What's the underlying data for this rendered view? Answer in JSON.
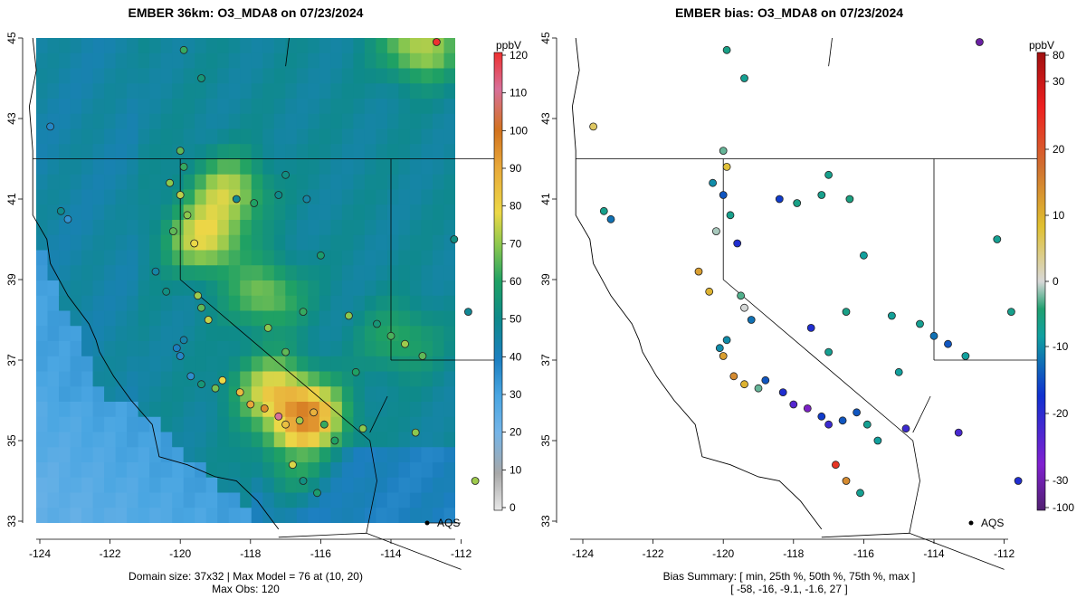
{
  "left_panel": {
    "title": "EMBER 36km: O3_MDA8 on 07/23/2024",
    "caption_line1": "Domain size: 37x32 | Max Model = 76 at (10, 20)",
    "caption_line2": "Max Obs: 120",
    "colorbar": {
      "unit": "ppbV",
      "tick_labels": [
        "0",
        "10",
        "20",
        "30",
        "40",
        "50",
        "60",
        "70",
        "80",
        "90",
        "100",
        "110",
        "120"
      ],
      "colors": [
        "#e8e8e8",
        "#a8a8a8",
        "#75b5e8",
        "#4aa6e2",
        "#1c7fc0",
        "#0e8a8a",
        "#1fa164",
        "#8cc84e",
        "#ecd847",
        "#e8a83a",
        "#d2721e",
        "#d8709a",
        "#ee3030"
      ]
    },
    "site_label": "AQS"
  },
  "right_panel": {
    "title": "EMBER bias: O3_MDA8 on 07/23/2024",
    "caption_line1": "Bias Summary: [ min, 25th %, 50th %, 75th %, max ]",
    "caption_line2": "[ -58,   -16,   -9.1,   -1.6,   27 ]",
    "colorbar": {
      "unit": "ppbV",
      "tick_labels": [
        "80",
        "30",
        "20",
        "10",
        "0",
        "-10",
        "-20",
        "-30",
        "-100"
      ],
      "colors": [
        "#a01010",
        "#ee2020",
        "#d07030",
        "#e0b830",
        "#d8d8d8",
        "#20a070",
        "#1030d0",
        "#8020d0",
        "#502070"
      ]
    },
    "site_label": "AQS"
  },
  "axes": {
    "x_ticks": [
      "-124",
      "-122",
      "-120",
      "-118",
      "-116",
      "-114",
      "-112"
    ],
    "y_ticks": [
      "33",
      "35",
      "37",
      "39",
      "41",
      "43",
      "45"
    ]
  },
  "sites": [
    {
      "lon": -123.4,
      "lat": 40.7,
      "obs": 50,
      "bias": -9
    },
    {
      "lon": -123.2,
      "lat": 40.5,
      "obs": 35,
      "bias": -16
    },
    {
      "lon": -123.7,
      "lat": 42.8,
      "obs": 38,
      "bias": 10
    },
    {
      "lon": -119.9,
      "lat": 44.7,
      "obs": 62,
      "bias": -8
    },
    {
      "lon": -119.4,
      "lat": 44.0,
      "obs": 55,
      "bias": -10
    },
    {
      "lon": -120.0,
      "lat": 42.2,
      "obs": 66,
      "bias": -1
    },
    {
      "lon": -119.9,
      "lat": 41.8,
      "obs": 62,
      "bias": 12
    },
    {
      "lon": -120.3,
      "lat": 41.4,
      "obs": 70,
      "bias": -14
    },
    {
      "lon": -120.0,
      "lat": 41.1,
      "obs": 75,
      "bias": -18
    },
    {
      "lon": -119.8,
      "lat": 40.6,
      "obs": 70,
      "bias": -9
    },
    {
      "lon": -120.2,
      "lat": 40.2,
      "obs": 66,
      "bias": 2
    },
    {
      "lon": -119.6,
      "lat": 39.9,
      "obs": 80,
      "bias": -22
    },
    {
      "lon": -120.7,
      "lat": 39.2,
      "obs": 45,
      "bias": 16
    },
    {
      "lon": -120.4,
      "lat": 38.7,
      "obs": 52,
      "bias": 14
    },
    {
      "lon": -119.5,
      "lat": 38.6,
      "obs": 72,
      "bias": -2
    },
    {
      "lon": -119.4,
      "lat": 38.3,
      "obs": 66,
      "bias": 4
    },
    {
      "lon": -119.2,
      "lat": 38.0,
      "obs": 76,
      "bias": -16
    },
    {
      "lon": -119.9,
      "lat": 37.5,
      "obs": 44,
      "bias": -14
    },
    {
      "lon": -120.1,
      "lat": 37.3,
      "obs": 40,
      "bias": -14
    },
    {
      "lon": -120.0,
      "lat": 37.1,
      "obs": 38,
      "bias": 16
    },
    {
      "lon": -119.7,
      "lat": 36.6,
      "obs": 36,
      "bias": 18
    },
    {
      "lon": -119.4,
      "lat": 36.4,
      "obs": 55,
      "bias": 14
    },
    {
      "lon": -119.0,
      "lat": 36.3,
      "obs": 68,
      "bias": -1
    },
    {
      "lon": -118.8,
      "lat": 36.5,
      "obs": 80,
      "bias": -18
    },
    {
      "lon": -118.3,
      "lat": 36.2,
      "obs": 86,
      "bias": -22
    },
    {
      "lon": -118.0,
      "lat": 35.9,
      "obs": 90,
      "bias": -26
    },
    {
      "lon": -117.6,
      "lat": 35.8,
      "obs": 95,
      "bias": -30
    },
    {
      "lon": -117.2,
      "lat": 35.6,
      "obs": 110,
      "bias": -20
    },
    {
      "lon": -117.0,
      "lat": 35.4,
      "obs": 85,
      "bias": -24
    },
    {
      "lon": -116.6,
      "lat": 35.5,
      "obs": 72,
      "bias": -18
    },
    {
      "lon": -116.2,
      "lat": 35.7,
      "obs": 88,
      "bias": -18
    },
    {
      "lon": -115.9,
      "lat": 35.4,
      "obs": 62,
      "bias": -10
    },
    {
      "lon": -115.6,
      "lat": 35.0,
      "obs": 60,
      "bias": -12
    },
    {
      "lon": -116.8,
      "lat": 34.4,
      "obs": 78,
      "bias": 27
    },
    {
      "lon": -116.5,
      "lat": 34.0,
      "obs": 52,
      "bias": 18
    },
    {
      "lon": -116.1,
      "lat": 33.7,
      "obs": 58,
      "bias": -10
    },
    {
      "lon": -117.5,
      "lat": 37.8,
      "obs": 70,
      "bias": -22
    },
    {
      "lon": -117.0,
      "lat": 37.2,
      "obs": 66,
      "bias": -10
    },
    {
      "lon": -116.5,
      "lat": 38.2,
      "obs": 62,
      "bias": -8
    },
    {
      "lon": -116.0,
      "lat": 39.6,
      "obs": 58,
      "bias": -12
    },
    {
      "lon": -115.2,
      "lat": 38.1,
      "obs": 70,
      "bias": -11
    },
    {
      "lon": -115.0,
      "lat": 36.7,
      "obs": 60,
      "bias": -12
    },
    {
      "lon": -114.4,
      "lat": 37.9,
      "obs": 55,
      "bias": -10
    },
    {
      "lon": -114.0,
      "lat": 37.6,
      "obs": 64,
      "bias": -16
    },
    {
      "lon": -113.6,
      "lat": 37.4,
      "obs": 72,
      "bias": -18
    },
    {
      "lon": -113.1,
      "lat": 37.1,
      "obs": 66,
      "bias": -12
    },
    {
      "lon": -112.7,
      "lat": 44.9,
      "obs": 120,
      "bias": -58
    },
    {
      "lon": -112.2,
      "lat": 40.0,
      "obs": 52,
      "bias": -10
    },
    {
      "lon": -111.8,
      "lat": 38.2,
      "obs": 48,
      "bias": -9
    },
    {
      "lon": -114.8,
      "lat": 35.3,
      "obs": 70,
      "bias": -24
    },
    {
      "lon": -113.3,
      "lat": 35.2,
      "obs": 70,
      "bias": -25
    },
    {
      "lon": -111.6,
      "lat": 34.0,
      "obs": 72,
      "bias": -22
    },
    {
      "lon": -117.9,
      "lat": 40.9,
      "obs": 60,
      "bias": -8
    },
    {
      "lon": -117.2,
      "lat": 41.1,
      "obs": 50,
      "bias": -9
    },
    {
      "lon": -116.4,
      "lat": 41.0,
      "obs": 45,
      "bias": -7
    },
    {
      "lon": -117.0,
      "lat": 41.6,
      "obs": 52,
      "bias": -9
    },
    {
      "lon": -118.4,
      "lat": 41.0,
      "obs": 48,
      "bias": -20
    }
  ]
}
